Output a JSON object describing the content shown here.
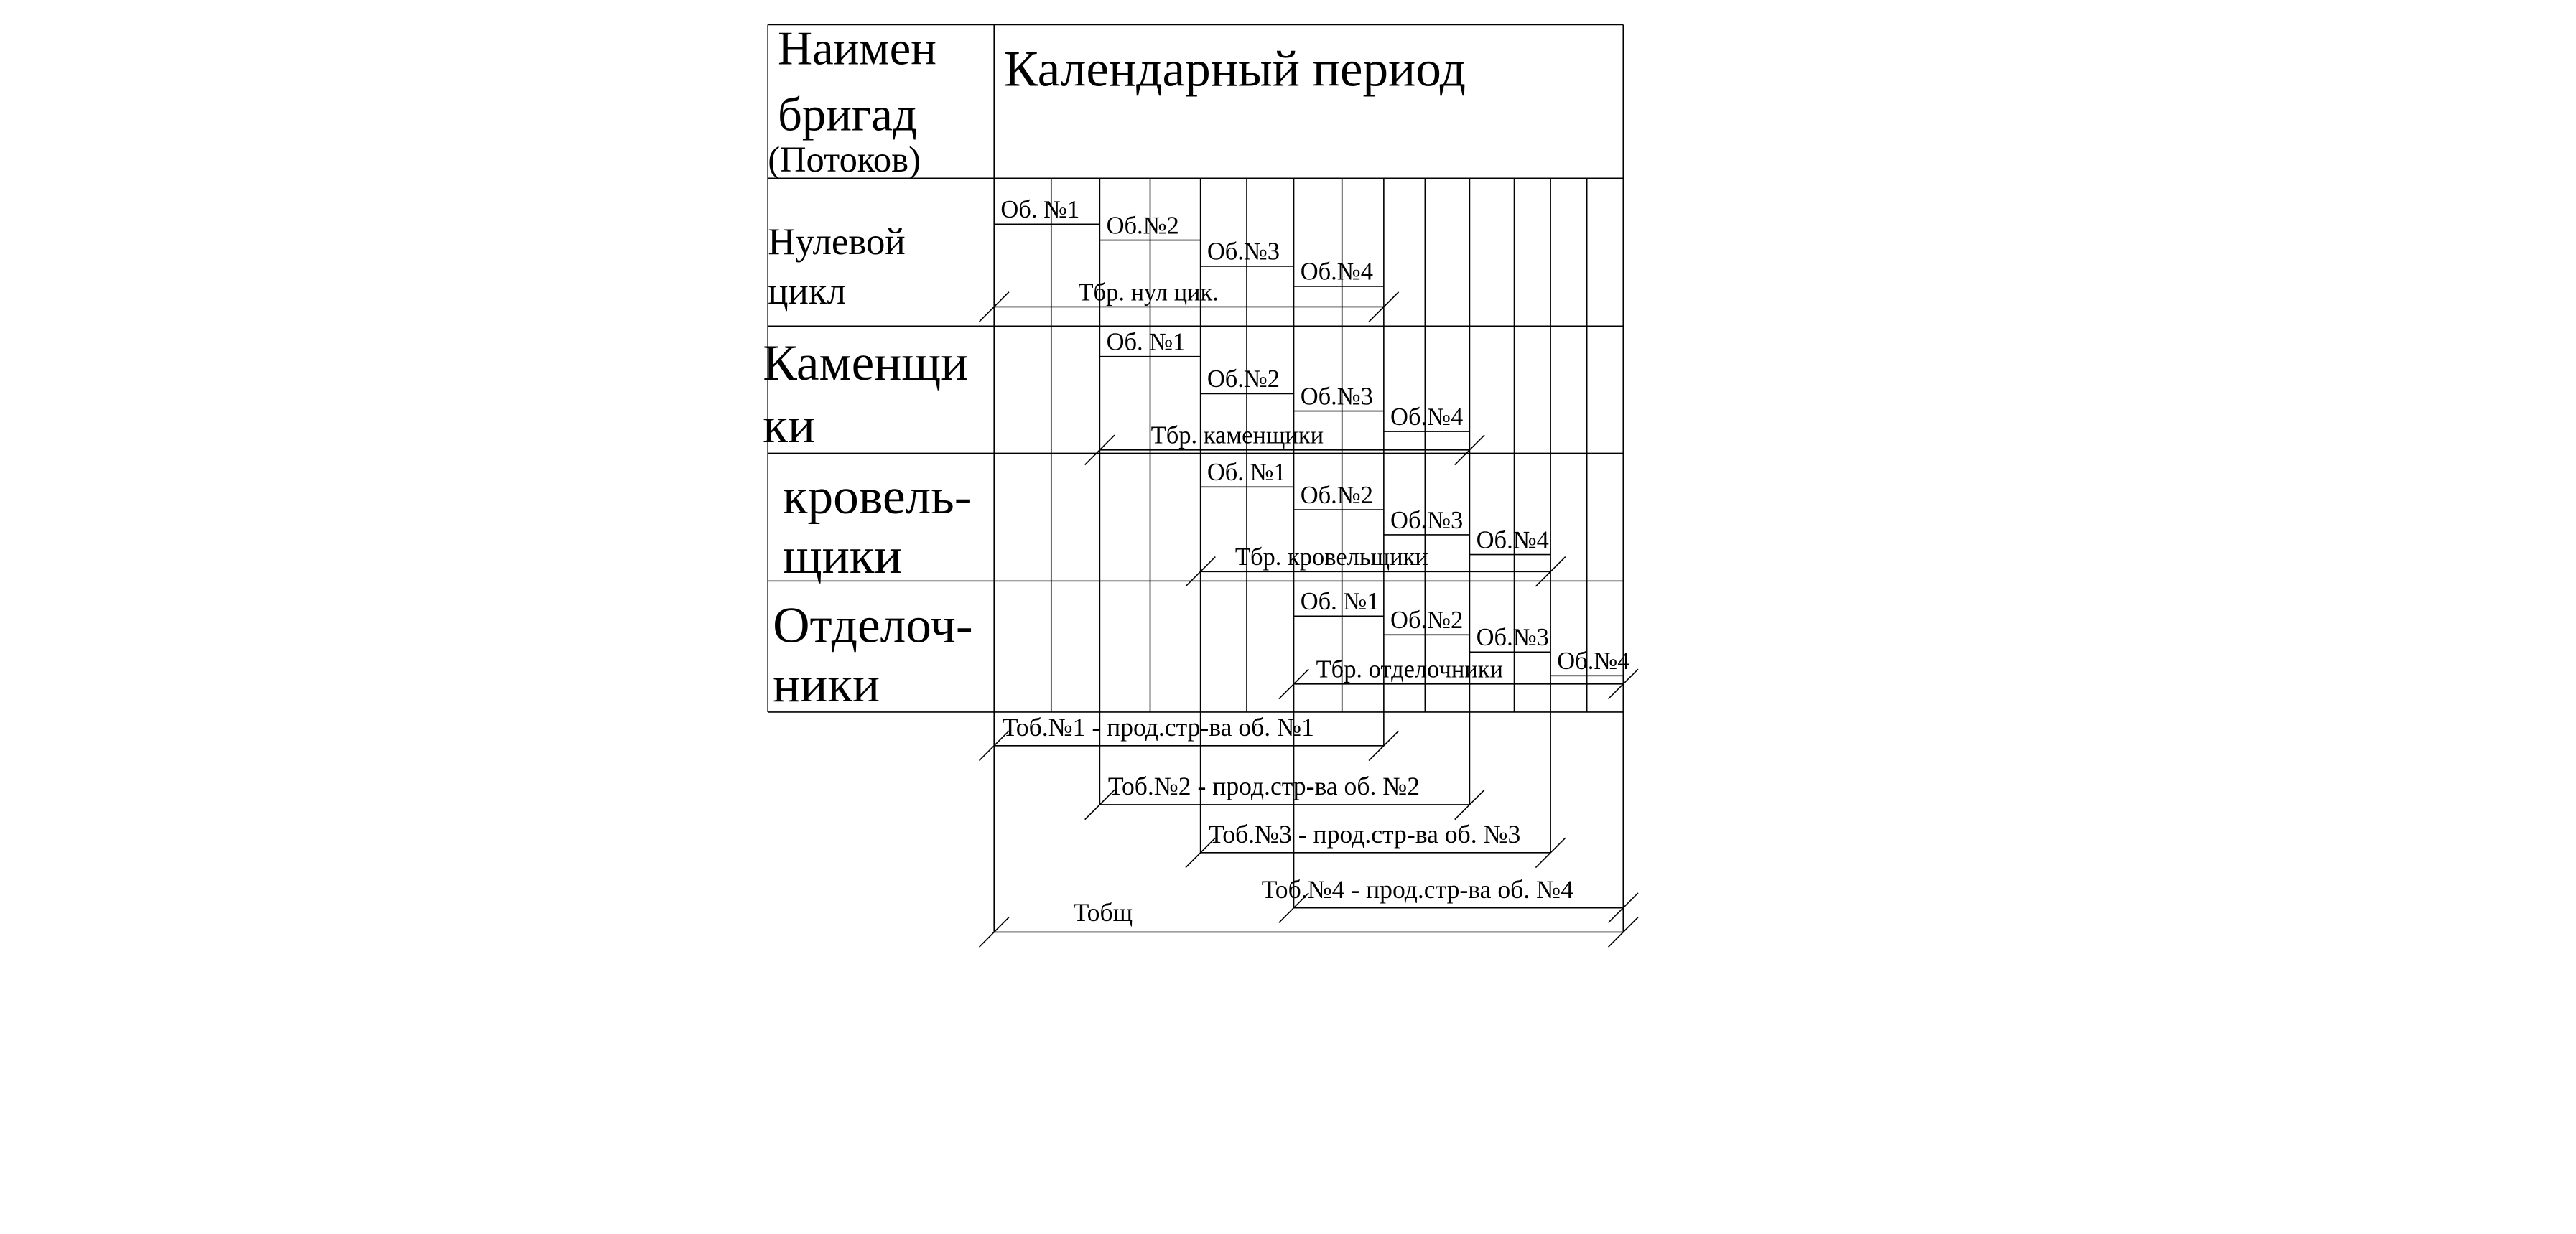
{
  "header": {
    "name_col_lines": [
      "Наимен",
      "бригад",
      "(Потоков)"
    ],
    "period_title": "Календарный период"
  },
  "rows": [
    {
      "name_lines": [
        "Нулевой",
        "цикл"
      ],
      "duration_label": "Тбр. нул цик.",
      "objects": [
        "Об. №1",
        "Об.№2",
        "Об.№3",
        "Об.№4"
      ]
    },
    {
      "name_lines": [
        "Каменщи",
        "ки"
      ],
      "duration_label": "Тбр. каменщики",
      "objects": [
        "Об. №1",
        "Об.№2",
        "Об.№3",
        "Об.№4"
      ]
    },
    {
      "name_lines": [
        "кровель-",
        "щики"
      ],
      "duration_label": "Тбр. кровельщики",
      "objects": [
        "Об. №1",
        "Об.№2",
        "Об.№3",
        "Об.№4"
      ]
    },
    {
      "name_lines": [
        "Отделоч-",
        "ники"
      ],
      "duration_label": "Тбр. отделочники",
      "objects": [
        "Об. №1",
        "Об.№2",
        "Об.№3",
        "Об.№4"
      ]
    }
  ],
  "object_totals": [
    "Тоб.№1 - прод.стр-ва об. №1",
    "Тоб.№2 - прод.стр-ва об. №2",
    "Тоб.№3 - прод.стр-ва об. №3",
    "Тоб.№4 - прод.стр-ва об. №4"
  ],
  "overall_total": "Тобщ"
}
